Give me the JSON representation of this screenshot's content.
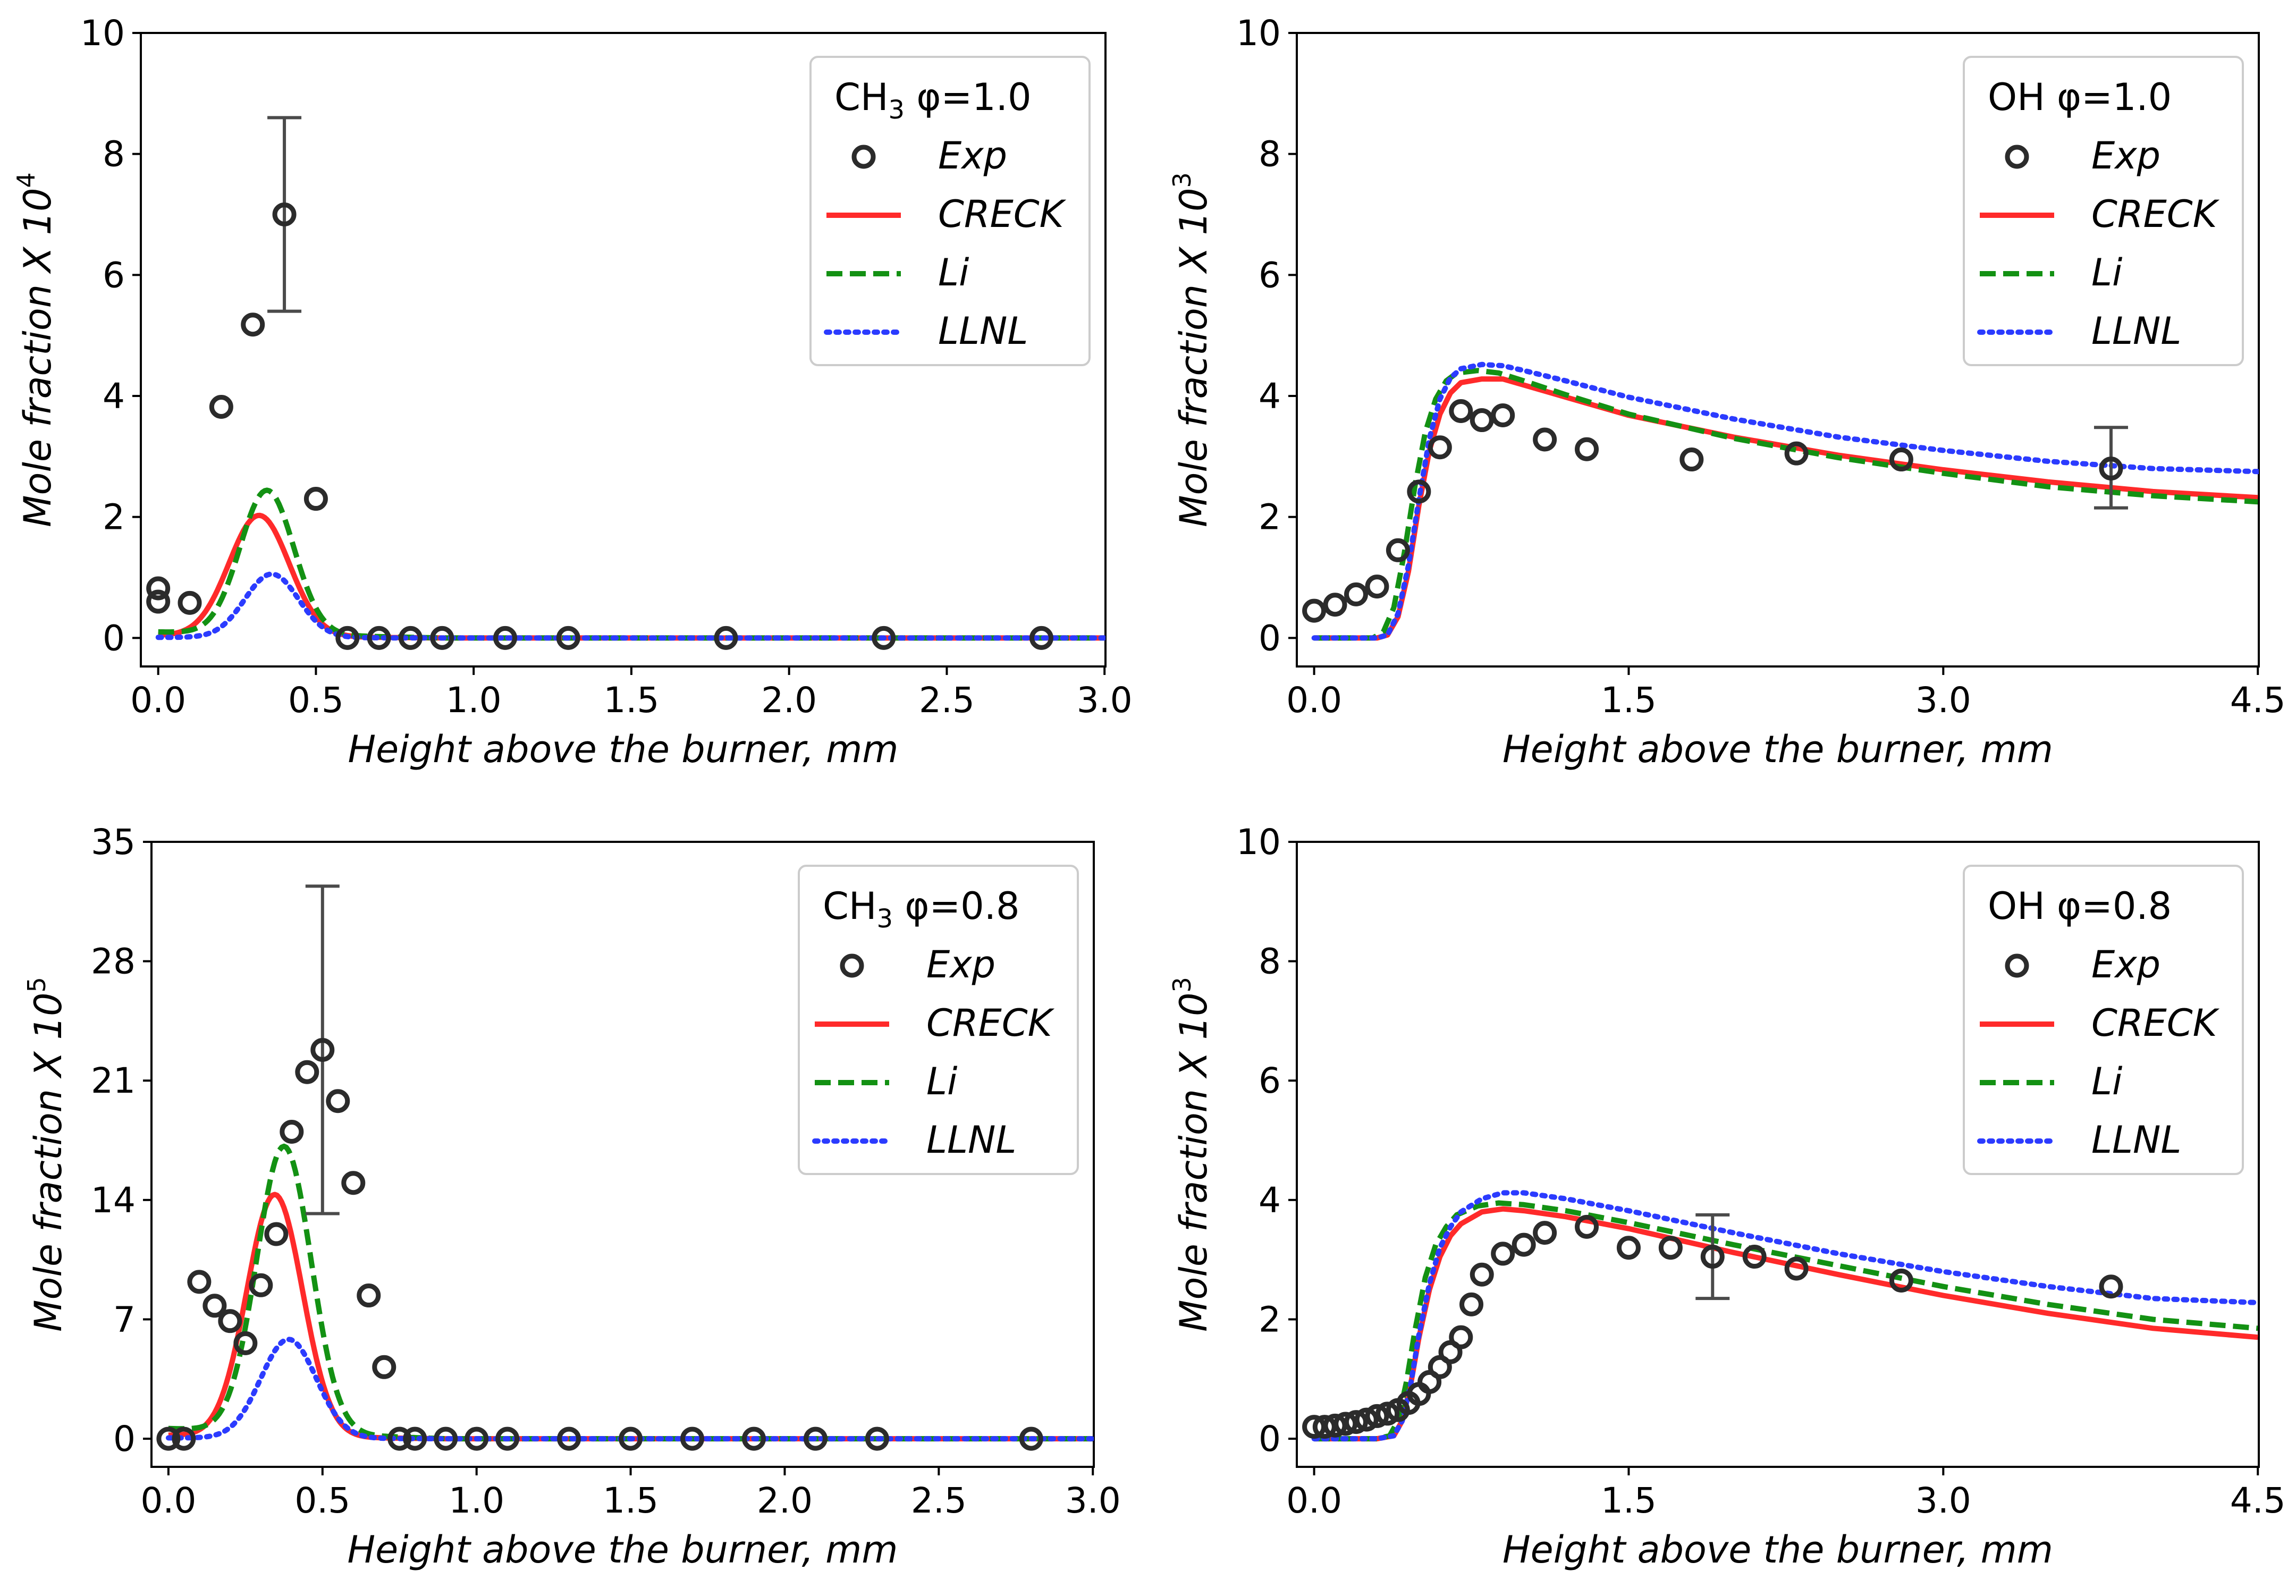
{
  "chart_data": [
    {
      "type": "line",
      "panel": "top-left",
      "xlabel": "Height above the burner, mm",
      "ylabel": "Mole fraction X 10",
      "ylabel_exp": "4",
      "xlim": [
        0,
        3.0
      ],
      "ylim": [
        0,
        10
      ],
      "xticks": [
        0,
        0.5,
        1.0,
        1.5,
        2.0,
        2.5,
        3.0
      ],
      "xtick_labels": [
        "0.0",
        "0.5",
        "1.0",
        "1.5",
        "2.0",
        "2.5",
        "3.0"
      ],
      "yticks": [
        0,
        2,
        4,
        6,
        8,
        10
      ],
      "ytick_labels": [
        "0",
        "2",
        "4",
        "6",
        "8",
        "10"
      ],
      "legend": {
        "species_main": "CH",
        "species_sub": "3",
        "condition": "φ=1.0",
        "entries": [
          "Exp",
          "CRECK",
          "Li",
          "LLNL"
        ],
        "position": "top-right"
      },
      "exp": {
        "x": [
          0.0,
          0.0,
          0.1,
          0.2,
          0.3,
          0.4,
          0.5,
          0.6,
          0.7,
          0.8,
          0.9,
          1.1,
          1.3,
          1.8,
          2.3,
          2.8
        ],
        "y": [
          0.6,
          0.82,
          0.58,
          3.82,
          5.18,
          7.0,
          2.3,
          0,
          0,
          0,
          0,
          0,
          0,
          0,
          0,
          0
        ]
      },
      "errorbar": {
        "x": 0.4,
        "low": 5.4,
        "high": 8.6
      },
      "series": [
        {
          "name": "CRECK",
          "peak": 2.0,
          "center": 0.32,
          "width": 0.095,
          "base": 0.04,
          "xmax": 3.0
        },
        {
          "name": "Li",
          "peak": 2.38,
          "center": 0.345,
          "width": 0.085,
          "base": 0.1,
          "xmax": 3.0
        },
        {
          "name": "LLNL",
          "peak": 1.05,
          "center": 0.36,
          "width": 0.085,
          "base": 0.01,
          "xmax": 3.0
        }
      ]
    },
    {
      "type": "line",
      "panel": "top-right",
      "xlabel": "Height above the burner, mm",
      "ylabel": "Mole fraction X 10",
      "ylabel_exp": "3",
      "xlim": [
        0,
        4.5
      ],
      "ylim": [
        0,
        10
      ],
      "xticks": [
        0,
        1.5,
        3.0,
        4.5
      ],
      "xtick_labels": [
        "0.0",
        "1.5",
        "3.0",
        "4.5"
      ],
      "yticks": [
        0,
        2,
        4,
        6,
        8,
        10
      ],
      "ytick_labels": [
        "0",
        "2",
        "4",
        "6",
        "8",
        "10"
      ],
      "legend": {
        "species_main": "OH",
        "species_sub": "",
        "condition": "φ=1.0",
        "entries": [
          "Exp",
          "CRECK",
          "Li",
          "LLNL"
        ],
        "position": "top-right"
      },
      "exp": {
        "x": [
          0.0,
          0.1,
          0.2,
          0.3,
          0.4,
          0.5,
          0.6,
          0.7,
          0.8,
          0.9,
          1.1,
          1.3,
          1.8,
          2.3,
          2.8,
          3.8
        ],
        "y": [
          0.45,
          0.55,
          0.72,
          0.85,
          1.45,
          2.42,
          3.15,
          3.75,
          3.6,
          3.68,
          3.28,
          3.12,
          2.95,
          3.05,
          2.95,
          2.8
        ]
      },
      "errorbar": {
        "x": 3.8,
        "low": 2.15,
        "high": 3.48
      },
      "series": [
        {
          "name": "CRECK",
          "x": [
            0,
            0.3,
            0.35,
            0.4,
            0.45,
            0.5,
            0.55,
            0.6,
            0.65,
            0.7,
            0.8,
            0.9,
            1.0,
            1.2,
            1.5,
            2.0,
            2.5,
            3.0,
            3.5,
            4.0,
            4.5
          ],
          "y": [
            0,
            0,
            0.05,
            0.35,
            1.1,
            2.2,
            3.1,
            3.7,
            4.05,
            4.22,
            4.28,
            4.28,
            4.18,
            3.98,
            3.68,
            3.32,
            3.02,
            2.78,
            2.58,
            2.42,
            2.32
          ]
        },
        {
          "name": "Li",
          "x": [
            0,
            0.28,
            0.33,
            0.38,
            0.43,
            0.48,
            0.53,
            0.58,
            0.63,
            0.68,
            0.78,
            0.88,
            1.0,
            1.2,
            1.5,
            2.0,
            2.5,
            3.0,
            3.5,
            4.0,
            4.5
          ],
          "y": [
            0,
            0,
            0.1,
            0.5,
            1.4,
            2.5,
            3.4,
            3.95,
            4.25,
            4.38,
            4.42,
            4.38,
            4.25,
            4.02,
            3.7,
            3.3,
            2.98,
            2.72,
            2.5,
            2.35,
            2.25
          ]
        },
        {
          "name": "LLNL",
          "x": [
            0,
            0.3,
            0.35,
            0.4,
            0.45,
            0.5,
            0.55,
            0.6,
            0.65,
            0.7,
            0.8,
            0.9,
            1.0,
            1.2,
            1.5,
            2.0,
            2.5,
            3.0,
            3.5,
            4.0,
            4.5
          ],
          "y": [
            0,
            0,
            0.05,
            0.4,
            1.2,
            2.3,
            3.3,
            3.95,
            4.3,
            4.45,
            4.52,
            4.5,
            4.42,
            4.25,
            3.98,
            3.62,
            3.32,
            3.1,
            2.92,
            2.8,
            2.75
          ]
        }
      ]
    },
    {
      "type": "line",
      "panel": "bottom-left",
      "xlabel": "Height above the burner, mm",
      "ylabel": "Mole fraction X 10",
      "ylabel_exp": "5",
      "xlim": [
        0,
        3.0
      ],
      "ylim": [
        0,
        35
      ],
      "xticks": [
        0,
        0.5,
        1.0,
        1.5,
        2.0,
        2.5,
        3.0
      ],
      "xtick_labels": [
        "0.0",
        "0.5",
        "1.0",
        "1.5",
        "2.0",
        "2.5",
        "3.0"
      ],
      "yticks": [
        0,
        7,
        14,
        21,
        28,
        35
      ],
      "ytick_labels": [
        "0",
        "7",
        "14",
        "21",
        "28",
        "35"
      ],
      "legend": {
        "species_main": "CH",
        "species_sub": "3",
        "condition": "φ=0.8",
        "entries": [
          "Exp",
          "CRECK",
          "Li",
          "LLNL"
        ],
        "position": "top-right"
      },
      "exp": {
        "x": [
          0.0,
          0.05,
          0.1,
          0.15,
          0.2,
          0.25,
          0.3,
          0.35,
          0.4,
          0.45,
          0.5,
          0.55,
          0.6,
          0.65,
          0.7,
          0.75,
          0.8,
          0.9,
          1.0,
          1.1,
          1.3,
          1.5,
          1.7,
          1.9,
          2.1,
          2.3,
          2.8
        ],
        "y": [
          0,
          0,
          9.2,
          7.8,
          6.9,
          5.6,
          9.0,
          12.0,
          18.0,
          21.5,
          22.8,
          19.8,
          15.0,
          8.4,
          4.2,
          0,
          0,
          0,
          0,
          0,
          0,
          0,
          0,
          0,
          0,
          0,
          0
        ]
      },
      "errorbar": {
        "x": 0.5,
        "low": 13.2,
        "high": 32.4
      },
      "series": [
        {
          "name": "CRECK",
          "peak": 14.2,
          "center": 0.345,
          "width": 0.09,
          "base": 0.2,
          "xmax": 3.0
        },
        {
          "name": "Li",
          "peak": 16.8,
          "center": 0.375,
          "width": 0.088,
          "base": 0.6,
          "xmax": 3.0
        },
        {
          "name": "LLNL",
          "peak": 5.8,
          "center": 0.39,
          "width": 0.09,
          "base": 0.05,
          "xmax": 3.0
        }
      ]
    },
    {
      "type": "line",
      "panel": "bottom-right",
      "xlabel": "Height above the burner, mm",
      "ylabel": "Mole fraction X 10",
      "ylabel_exp": "3",
      "xlim": [
        0,
        4.5
      ],
      "ylim": [
        0,
        10
      ],
      "xticks": [
        0,
        1.5,
        3.0,
        4.5
      ],
      "xtick_labels": [
        "0.0",
        "1.5",
        "3.0",
        "4.5"
      ],
      "yticks": [
        0,
        2,
        4,
        6,
        8,
        10
      ],
      "ytick_labels": [
        "0",
        "2",
        "4",
        "6",
        "8",
        "10"
      ],
      "legend": {
        "species_main": "OH",
        "species_sub": "",
        "condition": "φ=0.8",
        "entries": [
          "Exp",
          "CRECK",
          "Li",
          "LLNL"
        ],
        "position": "top-right"
      },
      "exp": {
        "x": [
          0.0,
          0.05,
          0.1,
          0.15,
          0.2,
          0.25,
          0.3,
          0.35,
          0.4,
          0.45,
          0.5,
          0.55,
          0.6,
          0.65,
          0.7,
          0.75,
          0.8,
          0.9,
          1.0,
          1.1,
          1.3,
          1.5,
          1.7,
          1.9,
          2.1,
          2.3,
          2.8,
          3.8
        ],
        "y": [
          0.2,
          0.2,
          0.22,
          0.25,
          0.28,
          0.32,
          0.38,
          0.42,
          0.48,
          0.6,
          0.75,
          0.95,
          1.2,
          1.45,
          1.7,
          2.25,
          2.75,
          3.1,
          3.25,
          3.45,
          3.55,
          3.2,
          3.2,
          3.05,
          3.05,
          2.85,
          2.65,
          2.55
        ]
      },
      "errorbar": {
        "x": 1.9,
        "low": 2.35,
        "high": 3.75
      },
      "series": [
        {
          "name": "CRECK",
          "x": [
            0,
            0.3,
            0.38,
            0.42,
            0.46,
            0.5,
            0.55,
            0.6,
            0.65,
            0.7,
            0.8,
            0.9,
            1.0,
            1.2,
            1.5,
            2.0,
            2.5,
            3.0,
            3.5,
            4.0,
            4.5
          ],
          "y": [
            0,
            0,
            0.05,
            0.3,
            0.9,
            1.7,
            2.5,
            3.05,
            3.4,
            3.6,
            3.8,
            3.85,
            3.82,
            3.72,
            3.52,
            3.12,
            2.75,
            2.4,
            2.1,
            1.85,
            1.7
          ]
        },
        {
          "name": "Li",
          "x": [
            0,
            0.3,
            0.36,
            0.4,
            0.44,
            0.48,
            0.53,
            0.58,
            0.63,
            0.68,
            0.78,
            0.88,
            1.0,
            1.2,
            1.5,
            2.0,
            2.5,
            3.0,
            3.5,
            4.0,
            4.5
          ],
          "y": [
            0,
            0,
            0.05,
            0.3,
            0.95,
            1.8,
            2.7,
            3.25,
            3.55,
            3.75,
            3.9,
            3.95,
            3.92,
            3.82,
            3.62,
            3.25,
            2.9,
            2.55,
            2.25,
            2.0,
            1.85
          ]
        },
        {
          "name": "LLNL",
          "x": [
            0,
            0.3,
            0.38,
            0.42,
            0.46,
            0.5,
            0.55,
            0.6,
            0.65,
            0.7,
            0.8,
            0.9,
            1.0,
            1.2,
            1.5,
            2.0,
            2.5,
            3.0,
            3.5,
            4.0,
            4.5
          ],
          "y": [
            0,
            0,
            0.05,
            0.3,
            0.9,
            1.75,
            2.6,
            3.2,
            3.55,
            3.8,
            4.02,
            4.12,
            4.12,
            4.02,
            3.82,
            3.45,
            3.1,
            2.8,
            2.55,
            2.35,
            2.28
          ]
        }
      ]
    }
  ],
  "colors": {
    "CRECK": "#ff2a2a",
    "Li": "#139113",
    "LLNL": "#2b3bff",
    "Exp": "#2b2b2b",
    "errorbar": "#4a4a4a",
    "axis": "#000000",
    "legend_border": "#cccccc"
  }
}
